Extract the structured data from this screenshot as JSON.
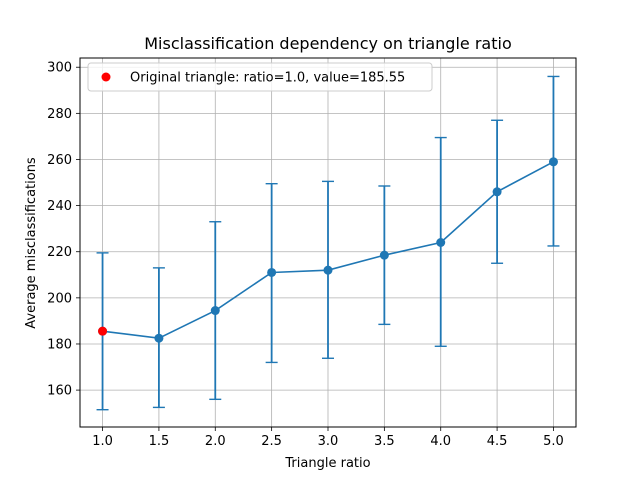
{
  "chart_data": {
    "type": "line",
    "title": "Misclassification dependency on triangle ratio",
    "xlabel": "Triangle ratio",
    "ylabel": "Average misclassifications",
    "xlim": [
      0.8,
      5.2
    ],
    "ylim": [
      144,
      304
    ],
    "xticks": [
      1.0,
      1.5,
      2.0,
      2.5,
      3.0,
      3.5,
      4.0,
      4.5,
      5.0
    ],
    "yticks": [
      160,
      180,
      200,
      220,
      240,
      260,
      280,
      300
    ],
    "grid": true,
    "legend_position": "upper-left",
    "series": [
      {
        "color": "#1f77b4",
        "x": [
          1.0,
          1.5,
          2.0,
          2.5,
          3.0,
          3.5,
          4.0,
          4.5,
          5.0
        ],
        "y": [
          185.55,
          182.5,
          194.5,
          211.0,
          212.0,
          218.5,
          224.0,
          246.0,
          259.0
        ],
        "err_low": [
          151.5,
          152.5,
          156.0,
          172.0,
          173.8,
          188.5,
          179.0,
          215.0,
          222.5
        ],
        "err_high": [
          219.5,
          213.0,
          233.0,
          249.5,
          250.5,
          248.5,
          269.5,
          277.0,
          296.0
        ]
      }
    ],
    "highlight": {
      "name": "Original triangle: ratio=1.0, value=185.55",
      "color": "#ff0000",
      "x": 1.0,
      "y": 185.55
    }
  }
}
